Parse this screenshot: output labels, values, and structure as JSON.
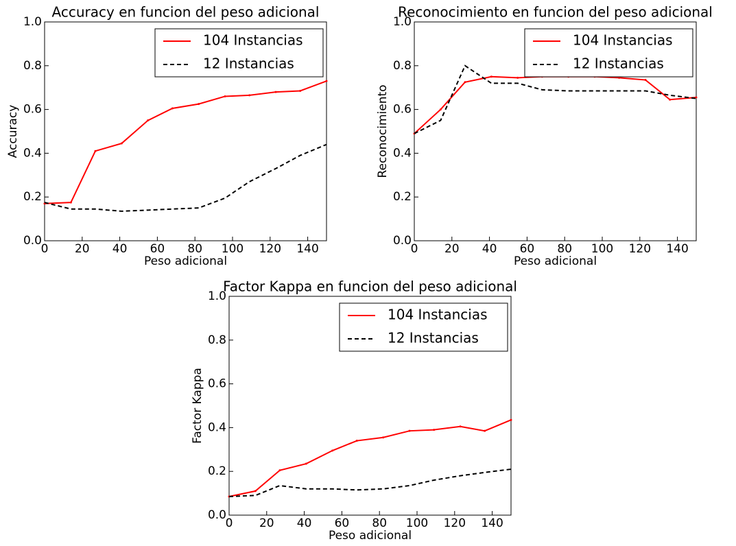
{
  "chart_data": [
    {
      "type": "line",
      "title": "Accuracy en funcion del peso adicional",
      "xlabel": "Peso adicional",
      "ylabel": "Accuracy",
      "x": [
        0,
        14,
        27,
        41,
        55,
        68,
        82,
        96,
        109,
        123,
        136,
        150
      ],
      "series": [
        {
          "name": "104 Instancias",
          "color": "#ff0000",
          "dash": "solid",
          "values": [
            0.17,
            0.175,
            0.41,
            0.445,
            0.55,
            0.605,
            0.625,
            0.66,
            0.665,
            0.68,
            0.685,
            0.73
          ]
        },
        {
          "name": "12 Instancias",
          "color": "#000000",
          "dash": "dashed",
          "values": [
            0.175,
            0.145,
            0.145,
            0.135,
            0.14,
            0.145,
            0.15,
            0.195,
            0.27,
            0.33,
            0.39,
            0.44
          ]
        }
      ],
      "xlim": [
        0,
        150
      ],
      "ylim": [
        0,
        1
      ],
      "xticks": [
        0,
        20,
        40,
        60,
        80,
        100,
        120,
        140
      ],
      "yticks": [
        {
          "value": 0,
          "label": "0.0"
        },
        0.2,
        0.4,
        0.6,
        0.8,
        {
          "value": 1,
          "label": "1.0"
        }
      ],
      "legend": "upper right"
    },
    {
      "type": "line",
      "title": "Reconocimiento en funcion del peso adicional",
      "xlabel": "Peso adicional",
      "ylabel": "Reconocimiento",
      "x": [
        0,
        14,
        27,
        41,
        55,
        68,
        82,
        96,
        109,
        123,
        136,
        150
      ],
      "series": [
        {
          "name": "104 Instancias",
          "color": "#ff0000",
          "dash": "solid",
          "values": [
            0.49,
            0.6,
            0.725,
            0.75,
            0.745,
            0.75,
            0.75,
            0.75,
            0.745,
            0.735,
            0.645,
            0.655
          ]
        },
        {
          "name": "12 Instancias",
          "color": "#000000",
          "dash": "dashed",
          "values": [
            0.49,
            0.55,
            0.8,
            0.72,
            0.72,
            0.69,
            0.685,
            0.685,
            0.685,
            0.685,
            0.665,
            0.65
          ]
        }
      ],
      "xlim": [
        0,
        150
      ],
      "ylim": [
        0,
        1
      ],
      "xticks": [
        0,
        20,
        40,
        60,
        80,
        100,
        120,
        140
      ],
      "yticks": [
        {
          "value": 0,
          "label": "0.0"
        },
        0.2,
        0.4,
        0.6,
        0.8,
        {
          "value": 1,
          "label": "1.0"
        }
      ],
      "legend": "upper right"
    },
    {
      "type": "line",
      "title": "Factor Kappa en funcion del peso adicional",
      "xlabel": "Peso adicional",
      "ylabel": "Factor Kappa",
      "x": [
        0,
        14,
        27,
        41,
        55,
        68,
        82,
        96,
        109,
        123,
        136,
        150
      ],
      "series": [
        {
          "name": "104 Instancias",
          "color": "#ff0000",
          "dash": "solid",
          "values": [
            0.085,
            0.11,
            0.205,
            0.235,
            0.295,
            0.34,
            0.355,
            0.385,
            0.39,
            0.405,
            0.385,
            0.435
          ]
        },
        {
          "name": "12 Instancias",
          "color": "#000000",
          "dash": "dashed",
          "values": [
            0.085,
            0.09,
            0.135,
            0.12,
            0.12,
            0.115,
            0.12,
            0.135,
            0.16,
            0.18,
            0.195,
            0.21
          ]
        }
      ],
      "xlim": [
        0,
        150
      ],
      "ylim": [
        0,
        1
      ],
      "xticks": [
        0,
        20,
        40,
        60,
        80,
        100,
        120,
        140
      ],
      "yticks": [
        {
          "value": 0,
          "label": "0.0"
        },
        0.2,
        0.4,
        0.6,
        0.8,
        {
          "value": 1,
          "label": "1.0"
        }
      ],
      "legend": "upper right"
    }
  ]
}
